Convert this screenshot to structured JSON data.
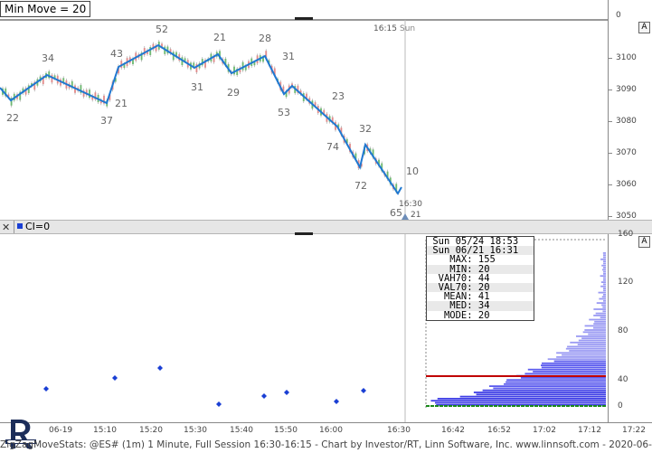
{
  "window": {
    "filter_label": "Min Move = 20",
    "right_axis_zero": "0",
    "a_button": "A"
  },
  "top_chart": {
    "session_time": "16:15",
    "session_day": "Sun",
    "cursor_time_label": "16:30",
    "cursor_value_label": "21",
    "price_ticks": [
      "3100",
      "3090",
      "3080",
      "3070",
      "3060",
      "3050"
    ],
    "zigzag_labels": [
      "22",
      "34",
      "37",
      "43",
      "21",
      "52",
      "31",
      "21",
      "29",
      "28",
      "31",
      "53",
      "23",
      "74",
      "32",
      "72",
      "10",
      "65"
    ],
    "colors": {
      "zigzag": "#1f78d1",
      "up_bar": "#4caf50",
      "down_bar": "#e57373"
    }
  },
  "bottom_chart": {
    "pane_label": "CI=0",
    "count_ticks": [
      "160",
      "120",
      "80",
      "40",
      "0"
    ],
    "stats": [
      {
        "k": "Sun 05/24",
        "v": "18:53"
      },
      {
        "k": "Sun 06/21",
        "v": "16:31"
      },
      {
        "k": "MAX:",
        "v": "155"
      },
      {
        "k": "MIN:",
        "v": "20"
      },
      {
        "k": "VAH70:",
        "v": "44"
      },
      {
        "k": "VAL70:",
        "v": "20"
      },
      {
        "k": "MEAN:",
        "v": "41"
      },
      {
        "k": "MED:",
        "v": "34"
      },
      {
        "k": "MODE:",
        "v": "20"
      }
    ],
    "colors": {
      "dots": "#1a3fd4",
      "mean_line": "#c00000",
      "mode_line": "#1a8a1a",
      "histogram": "#7b7bf0"
    }
  },
  "x_axis": {
    "ticks": [
      "06-19",
      "15:10",
      "15:20",
      "15:30",
      "15:40",
      "15:50",
      "16:00",
      "16:30",
      "16:42",
      "16:52",
      "17:02",
      "17:12",
      "17:22"
    ]
  },
  "footer": {
    "text": "ZigZagMoveStats: @ES# (1m) 1 Minute, Full Session 16:30-16:15 - Chart by Investor/RT, Linn Software, Inc. www.linnsoft.com - 2020-06-"
  }
}
